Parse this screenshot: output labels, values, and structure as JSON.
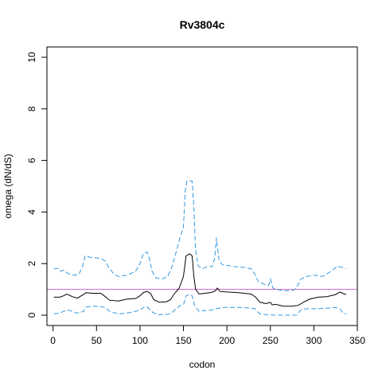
{
  "chart_data": {
    "type": "line",
    "title": "Rv3804c",
    "xlabel": "codon",
    "ylabel": "omega (dN/dS)",
    "xlim": [
      -7,
      350
    ],
    "ylim": [
      -0.4,
      10.4
    ],
    "xticks": [
      0,
      50,
      100,
      150,
      200,
      250,
      300,
      350
    ],
    "yticks": [
      0,
      2,
      4,
      6,
      8,
      10
    ],
    "grid": false,
    "reference_line": {
      "y": 1,
      "color": "#cc66cc"
    },
    "series": [
      {
        "role": "estimate",
        "color": "#000000",
        "style": "solid",
        "points": [
          [
            1,
            0.7
          ],
          [
            8,
            0.7
          ],
          [
            12,
            0.75
          ],
          [
            16,
            0.82
          ],
          [
            22,
            0.72
          ],
          [
            28,
            0.66
          ],
          [
            35,
            0.8
          ],
          [
            38,
            0.87
          ],
          [
            45,
            0.85
          ],
          [
            55,
            0.85
          ],
          [
            60,
            0.72
          ],
          [
            65,
            0.58
          ],
          [
            75,
            0.55
          ],
          [
            85,
            0.62
          ],
          [
            95,
            0.65
          ],
          [
            100,
            0.75
          ],
          [
            104,
            0.88
          ],
          [
            108,
            0.92
          ],
          [
            112,
            0.85
          ],
          [
            116,
            0.6
          ],
          [
            122,
            0.5
          ],
          [
            130,
            0.52
          ],
          [
            135,
            0.6
          ],
          [
            140,
            0.85
          ],
          [
            145,
            1.05
          ],
          [
            150,
            1.5
          ],
          [
            153,
            2.3
          ],
          [
            157,
            2.38
          ],
          [
            160,
            2.3
          ],
          [
            162,
            1.5
          ],
          [
            164,
            1.0
          ],
          [
            168,
            0.82
          ],
          [
            175,
            0.85
          ],
          [
            182,
            0.88
          ],
          [
            187,
            0.95
          ],
          [
            189,
            1.05
          ],
          [
            192,
            0.92
          ],
          [
            200,
            0.9
          ],
          [
            210,
            0.88
          ],
          [
            220,
            0.85
          ],
          [
            228,
            0.82
          ],
          [
            233,
            0.7
          ],
          [
            238,
            0.5
          ],
          [
            245,
            0.45
          ],
          [
            250,
            0.5
          ],
          [
            252,
            0.4
          ],
          [
            256,
            0.42
          ],
          [
            265,
            0.35
          ],
          [
            275,
            0.35
          ],
          [
            282,
            0.38
          ],
          [
            288,
            0.5
          ],
          [
            295,
            0.62
          ],
          [
            305,
            0.7
          ],
          [
            315,
            0.72
          ],
          [
            325,
            0.8
          ],
          [
            330,
            0.9
          ],
          [
            333,
            0.85
          ],
          [
            337,
            0.8
          ]
        ]
      },
      {
        "role": "upper bound",
        "color": "#3399dd",
        "style": "dashed",
        "points": [
          [
            1,
            1.8
          ],
          [
            6,
            1.82
          ],
          [
            9,
            1.7
          ],
          [
            12,
            1.75
          ],
          [
            18,
            1.6
          ],
          [
            25,
            1.55
          ],
          [
            30,
            1.6
          ],
          [
            34,
            1.9
          ],
          [
            37,
            2.3
          ],
          [
            42,
            2.25
          ],
          [
            55,
            2.2
          ],
          [
            60,
            2.1
          ],
          [
            64,
            1.85
          ],
          [
            70,
            1.6
          ],
          [
            75,
            1.5
          ],
          [
            85,
            1.55
          ],
          [
            95,
            1.7
          ],
          [
            100,
            2.0
          ],
          [
            104,
            2.4
          ],
          [
            108,
            2.45
          ],
          [
            110,
            2.3
          ],
          [
            114,
            1.7
          ],
          [
            118,
            1.45
          ],
          [
            125,
            1.4
          ],
          [
            132,
            1.5
          ],
          [
            137,
            1.9
          ],
          [
            142,
            2.5
          ],
          [
            146,
            3.0
          ],
          [
            150,
            3.4
          ],
          [
            152,
            4.8
          ],
          [
            154,
            5.2
          ],
          [
            160,
            5.2
          ],
          [
            162,
            4.2
          ],
          [
            164,
            2.5
          ],
          [
            167,
            1.9
          ],
          [
            172,
            1.8
          ],
          [
            178,
            1.9
          ],
          [
            183,
            1.88
          ],
          [
            186,
            2.2
          ],
          [
            188,
            3.0
          ],
          [
            191,
            2.1
          ],
          [
            195,
            1.95
          ],
          [
            202,
            1.92
          ],
          [
            210,
            1.88
          ],
          [
            220,
            1.85
          ],
          [
            228,
            1.8
          ],
          [
            232,
            1.6
          ],
          [
            236,
            1.3
          ],
          [
            243,
            1.2
          ],
          [
            248,
            1.15
          ],
          [
            250,
            1.4
          ],
          [
            253,
            1.05
          ],
          [
            257,
            1.0
          ],
          [
            265,
            0.95
          ],
          [
            275,
            0.95
          ],
          [
            280,
            1.05
          ],
          [
            285,
            1.4
          ],
          [
            292,
            1.5
          ],
          [
            300,
            1.55
          ],
          [
            310,
            1.5
          ],
          [
            320,
            1.7
          ],
          [
            327,
            1.9
          ],
          [
            333,
            1.85
          ],
          [
            337,
            1.8
          ]
        ]
      },
      {
        "role": "lower bound",
        "color": "#3399dd",
        "style": "dashed",
        "points": [
          [
            1,
            0.05
          ],
          [
            8,
            0.08
          ],
          [
            12,
            0.15
          ],
          [
            18,
            0.2
          ],
          [
            25,
            0.1
          ],
          [
            30,
            0.08
          ],
          [
            35,
            0.15
          ],
          [
            38,
            0.32
          ],
          [
            45,
            0.35
          ],
          [
            55,
            0.33
          ],
          [
            60,
            0.3
          ],
          [
            65,
            0.15
          ],
          [
            75,
            0.05
          ],
          [
            85,
            0.08
          ],
          [
            95,
            0.15
          ],
          [
            100,
            0.2
          ],
          [
            104,
            0.3
          ],
          [
            108,
            0.33
          ],
          [
            113,
            0.15
          ],
          [
            120,
            0.02
          ],
          [
            130,
            0.03
          ],
          [
            135,
            0.05
          ],
          [
            140,
            0.2
          ],
          [
            145,
            0.35
          ],
          [
            150,
            0.4
          ],
          [
            153,
            0.75
          ],
          [
            157,
            0.8
          ],
          [
            160,
            0.75
          ],
          [
            163,
            0.35
          ],
          [
            168,
            0.15
          ],
          [
            175,
            0.18
          ],
          [
            182,
            0.2
          ],
          [
            188,
            0.25
          ],
          [
            195,
            0.3
          ],
          [
            205,
            0.3
          ],
          [
            215,
            0.3
          ],
          [
            225,
            0.28
          ],
          [
            232,
            0.25
          ],
          [
            238,
            0.05
          ],
          [
            245,
            0.02
          ],
          [
            255,
            0.0
          ],
          [
            265,
            0.0
          ],
          [
            280,
            0.0
          ],
          [
            285,
            0.2
          ],
          [
            292,
            0.25
          ],
          [
            305,
            0.25
          ],
          [
            315,
            0.27
          ],
          [
            325,
            0.3
          ],
          [
            330,
            0.25
          ],
          [
            333,
            0.1
          ],
          [
            337,
            0.05
          ]
        ]
      }
    ]
  }
}
